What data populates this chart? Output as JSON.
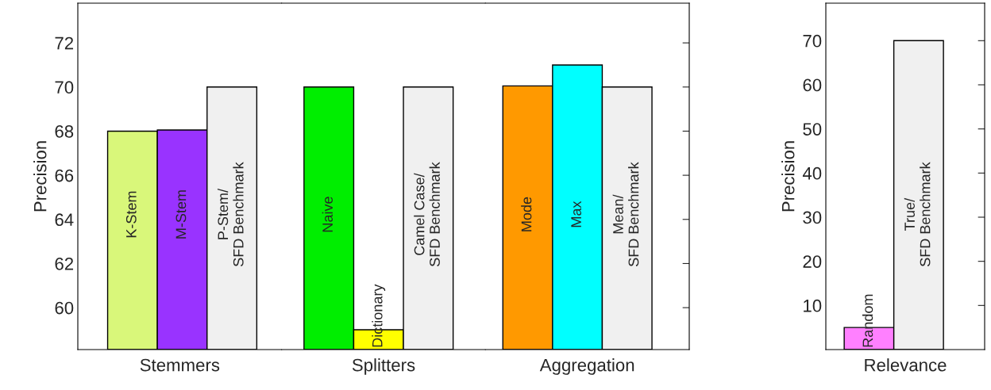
{
  "chart_data": [
    {
      "type": "bar",
      "xlabel": "Stemmers",
      "ylabel": "Precision",
      "categories": [
        "K-Stem",
        "M-Stem",
        "P-Stem/\nSFD Benchmark"
      ],
      "values": [
        68.0,
        68.05,
        70.0
      ],
      "colors": [
        "#d9f77a",
        "#9933ff",
        "#f0f0f0"
      ],
      "ylim": [
        58.1,
        73.8
      ],
      "yticks": [
        60,
        62,
        64,
        66,
        68,
        70,
        72
      ]
    },
    {
      "type": "bar",
      "xlabel": "Splitters",
      "categories": [
        "Naive",
        "Dictionary",
        "Camel Case/\nSFD Benchmark"
      ],
      "values": [
        70.0,
        59.0,
        70.0
      ],
      "colors": [
        "#00ee00",
        "#ffff00",
        "#f0f0f0"
      ],
      "ylim": [
        58.1,
        73.8
      ],
      "yticks": [
        60,
        62,
        64,
        66,
        68,
        70,
        72
      ],
      "tick_labels": "x"
    },
    {
      "type": "bar",
      "xlabel": "Aggregation",
      "categories": [
        "Mode",
        "Max",
        "Mean/\nSFD Benchmark"
      ],
      "values": [
        70.05,
        71.0,
        70.0
      ],
      "colors": [
        "#ff9900",
        "#00ffff",
        "#f0f0f0"
      ],
      "ylim": [
        58.1,
        73.8
      ],
      "yticks": [
        60,
        62,
        64,
        66,
        68,
        70,
        72
      ],
      "tick_labels": "x"
    },
    {
      "type": "bar",
      "xlabel": "Relevance",
      "ylabel": "Precision",
      "categories": [
        "Random",
        "True/\nSFD Benchmark"
      ],
      "values": [
        5.0,
        70.0
      ],
      "colors": [
        "#ff80ff",
        "#f0f0f0"
      ],
      "ylim": [
        0,
        78.5
      ],
      "yticks": [
        10,
        20,
        30,
        40,
        50,
        60,
        70
      ]
    }
  ]
}
